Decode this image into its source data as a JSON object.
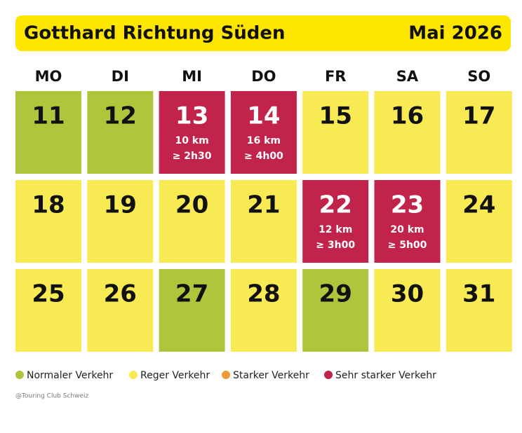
{
  "header": {
    "title": "Gotthard Richtung Süden",
    "month": "Mai 2026",
    "color": "#ffe600"
  },
  "weekdays": [
    "MO",
    "DI",
    "MI",
    "DO",
    "FR",
    "SA",
    "SO"
  ],
  "days": [
    {
      "day": 11,
      "color": "#b0c43c"
    },
    {
      "day": 12,
      "color": "#b0c43c"
    },
    {
      "day": 13,
      "color": "#c1234b",
      "km": "10 km",
      "duration": "≥ 2h30"
    },
    {
      "day": 14,
      "color": "#c1234b",
      "km": "16 km",
      "duration": "≥ 4h00"
    },
    {
      "day": 15,
      "color": "#f8ea52"
    },
    {
      "day": 16,
      "color": "#f8ea52"
    },
    {
      "day": 17,
      "color": "#f8ea52"
    },
    {
      "day": 18,
      "color": "#f8ea52"
    },
    {
      "day": 19,
      "color": "#f8ea52"
    },
    {
      "day": 20,
      "color": "#f8ea52"
    },
    {
      "day": 21,
      "color": "#f8ea52"
    },
    {
      "day": 22,
      "color": "#c1234b",
      "km": "12 km",
      "duration": "≥ 3h00"
    },
    {
      "day": 23,
      "color": "#c1234b",
      "km": "20 km",
      "duration": "≥ 5h00"
    },
    {
      "day": 24,
      "color": "#f8ea52"
    },
    {
      "day": 25,
      "color": "#f8ea52"
    },
    {
      "day": 26,
      "color": "#f8ea52"
    },
    {
      "day": 27,
      "color": "#b0c43c"
    },
    {
      "day": 28,
      "color": "#f8ea52"
    },
    {
      "day": 29,
      "color": "#b0c43c"
    },
    {
      "day": 30,
      "color": "#f8ea52"
    },
    {
      "day": 31,
      "color": "#f8ea52"
    }
  ],
  "legend": [
    {
      "label": "Normaler Verkehr",
      "color": "#b0c43c"
    },
    {
      "label": "Reger Verkehr",
      "color": "#f8ea52"
    },
    {
      "label": "Starker Verkehr",
      "color": "#eb9a35"
    },
    {
      "label": "Sehr starker Verkehr",
      "color": "#c1234b"
    }
  ],
  "credit": "@Touring Club Schweiz"
}
